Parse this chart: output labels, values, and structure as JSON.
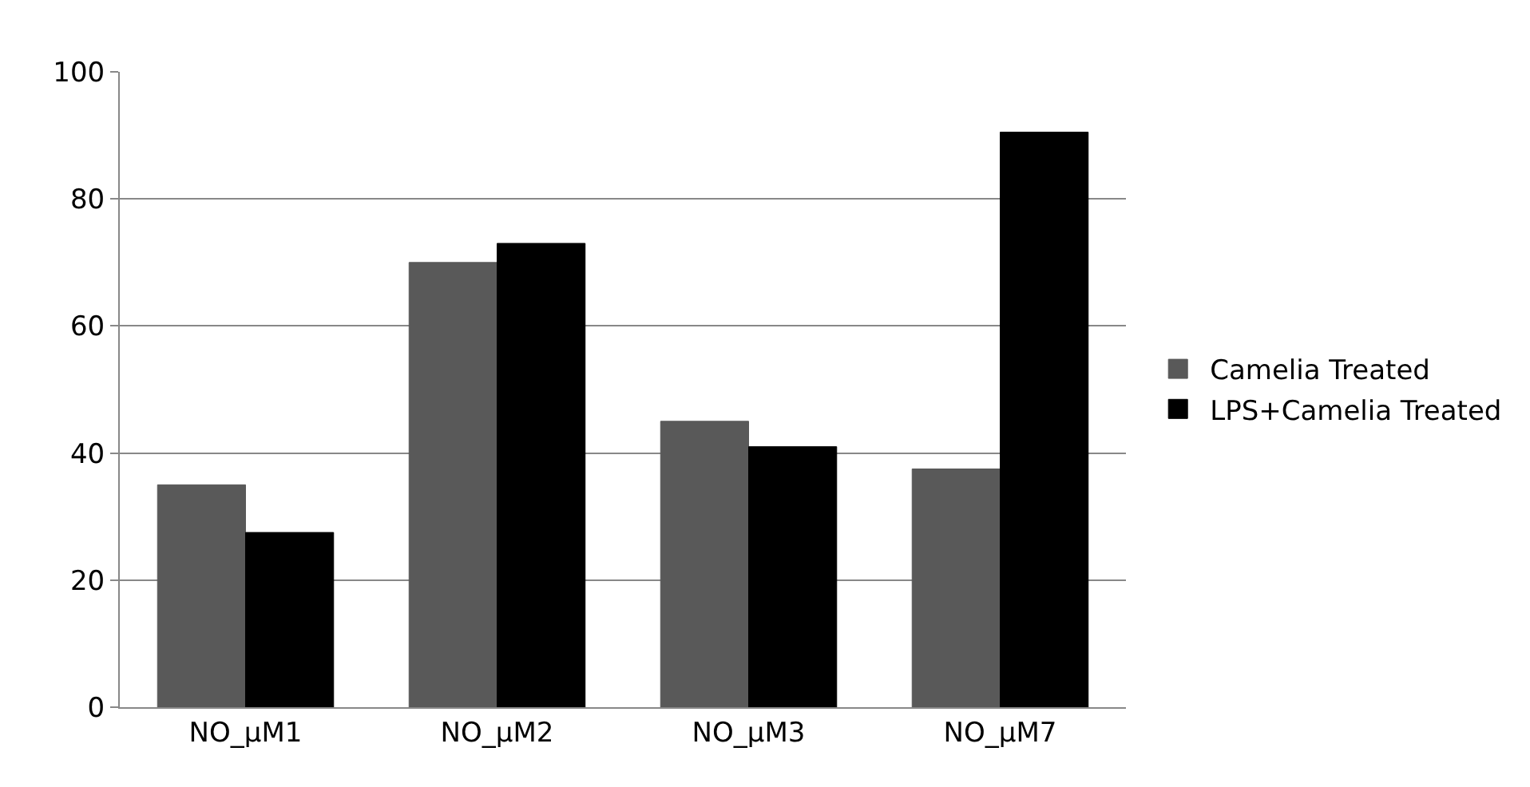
{
  "chart_data": {
    "type": "bar",
    "categories": [
      "NO_µM1",
      "NO_µM2",
      "NO_µM3",
      "NO_µM7"
    ],
    "series": [
      {
        "name": "Camelia Treated",
        "color": "#595959",
        "values": [
          35,
          70,
          45,
          37.5
        ]
      },
      {
        "name": "LPS+Camelia Treated",
        "color": "#000000",
        "values": [
          27.5,
          73,
          41,
          90.5
        ]
      }
    ],
    "ylim": [
      0,
      100
    ],
    "yticks": [
      0,
      20,
      40,
      60,
      80,
      100
    ],
    "grid": "y",
    "legend": "right"
  }
}
